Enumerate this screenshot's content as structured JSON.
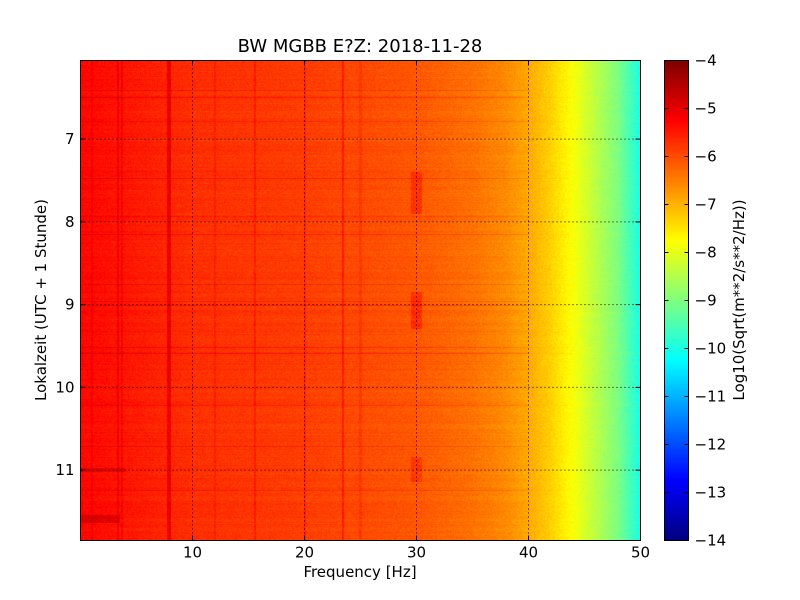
{
  "chart_data": {
    "type": "heatmap",
    "title": "BW MGBB E?Z: 2018-11-28",
    "xlabel": "Frequency [Hz]",
    "ylabel": "Lokalzeit (UTC + 1 Stunde)",
    "colorbar_label": "Log10(Sqrt(m**2/s**2/Hz))",
    "xlim": [
      0,
      50
    ],
    "ylim": [
      11.85,
      6.05
    ],
    "y_inverted": true,
    "grid": true,
    "colormap": "jet",
    "clim": [
      -14,
      -4
    ],
    "x_ticks": [
      10,
      20,
      30,
      40,
      50
    ],
    "x_tick_labels": [
      "10",
      "20",
      "30",
      "40",
      "50"
    ],
    "y_ticks": [
      7,
      8,
      9,
      10,
      11
    ],
    "y_tick_labels": [
      "7",
      "8",
      "9",
      "10",
      "11"
    ],
    "colorbar_ticks": [
      -4,
      -5,
      -6,
      -7,
      -8,
      -9,
      -10,
      -11,
      -12,
      -13,
      -14
    ],
    "colorbar_tick_labels": [
      "−4",
      "−5",
      "−6",
      "−7",
      "−8",
      "−9",
      "−10",
      "−11",
      "−12",
      "−13",
      "−14"
    ],
    "base_spectrum": {
      "frequency_hz": [
        0,
        5,
        10,
        20,
        30,
        35,
        38,
        40,
        42,
        44,
        46,
        48,
        49,
        50
      ],
      "log10_amplitude": [
        -5.3,
        -5.5,
        -5.7,
        -5.85,
        -6.1,
        -6.35,
        -6.6,
        -6.9,
        -7.3,
        -7.8,
        -8.4,
        -9.0,
        -9.5,
        -10.0
      ]
    },
    "features": {
      "frequency_lines_hz": [
        {
          "f": 1.0,
          "delta": 0.2
        },
        {
          "f": 3.3,
          "delta": 0.35
        },
        {
          "f": 3.7,
          "delta": 0.25
        },
        {
          "f": 7.8,
          "delta": 0.55
        },
        {
          "f": 8.0,
          "delta": 0.6
        },
        {
          "f": 12.0,
          "delta": 0.2
        },
        {
          "f": 15.6,
          "delta": 0.3
        },
        {
          "f": 20.0,
          "delta": 0.25
        },
        {
          "f": 23.4,
          "delta": 0.45
        },
        {
          "f": 25.0,
          "delta": 0.2
        }
      ],
      "bursts": [
        {
          "f_range": [
            29.5,
            30.5
          ],
          "t_range": [
            7.4,
            7.9
          ],
          "delta": 0.4
        },
        {
          "f_range": [
            29.5,
            30.5
          ],
          "t_range": [
            8.85,
            9.3
          ],
          "delta": 0.45
        },
        {
          "f_range": [
            29.5,
            30.5
          ],
          "t_range": [
            10.85,
            11.15
          ],
          "delta": 0.35
        },
        {
          "f_range": [
            0,
            3.5
          ],
          "t_range": [
            11.55,
            11.65
          ],
          "delta": 0.5
        },
        {
          "f_range": [
            0,
            4.0
          ],
          "t_range": [
            10.98,
            11.03
          ],
          "delta": 0.4
        }
      ]
    }
  }
}
